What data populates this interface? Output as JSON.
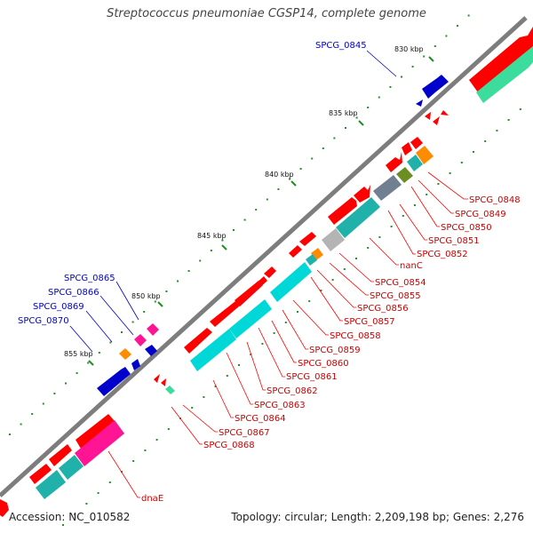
{
  "title": "Streptococcus pneumoniae CGSP14, complete genome",
  "accession": "Accession: NC_010582",
  "summary": "Topology: circular; Length: 2,209,198 bp; Genes: 2,276",
  "colors": {
    "forward": "#ff0000",
    "reverse_highlight": "#0000cc",
    "backbone": "#808080",
    "cds_cyan": "#00d8d8",
    "cds_teal": "#20b2aa",
    "cds_pink": "#ff1493",
    "cds_mint": "#3cdc9c",
    "cds_orange": "#ff8c00",
    "cds_gray": "#b4b4b4",
    "cds_slate": "#708090",
    "cds_olive": "#6b8e23",
    "tick_green": "#2e8b2e"
  },
  "kbp_ticks": [
    "830 kbp",
    "835 kbp",
    "840 kbp",
    "845 kbp",
    "850 kbp",
    "855 kbp"
  ],
  "blue_labels": [
    "SPCG_0845",
    "SPCG_0865",
    "SPCG_0866",
    "SPCG_0869",
    "SPCG_0870"
  ],
  "red_labels": [
    "SPCG_0848",
    "SPCG_0849",
    "SPCG_0850",
    "SPCG_0851",
    "SPCG_0852",
    "nanC",
    "SPCG_0854",
    "SPCG_0855",
    "SPCG_0856",
    "SPCG_0857",
    "SPCG_0858",
    "SPCG_0859",
    "SPCG_0860",
    "SPCG_0861",
    "SPCG_0862",
    "SPCG_0863",
    "SPCG_0864",
    "SPCG_0867",
    "SPCG_0868",
    "dnaE"
  ]
}
